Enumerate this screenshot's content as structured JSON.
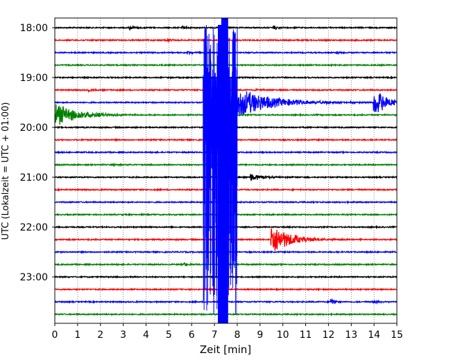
{
  "chart_data": {
    "type": "line",
    "title": "",
    "xlabel": "Zeit  [min]",
    "ylabel": "UTC (Lokalzeit = UTC + 01:00)",
    "xlim": [
      0,
      15
    ],
    "x_ticks": [
      "0",
      "1",
      "2",
      "3",
      "4",
      "5",
      "6",
      "7",
      "8",
      "9",
      "10",
      "11",
      "12",
      "13",
      "14",
      "15"
    ],
    "y_ticks": [
      "18:00",
      "19:00",
      "20:00",
      "21:00",
      "22:00",
      "23:00"
    ],
    "grid": "dotted",
    "trace_interval_minutes": 15,
    "trace_colors": [
      "#000000",
      "#ff0000",
      "#0000ff",
      "#008000"
    ],
    "traces": [
      {
        "start": "18:00",
        "color": "#000000",
        "events": [
          {
            "x": 3.3,
            "amp": 3
          },
          {
            "x": 5.6,
            "amp": 2.5
          },
          {
            "x": 9.6,
            "amp": 3
          }
        ]
      },
      {
        "start": "18:15",
        "color": "#ff0000",
        "events": [
          {
            "x": 4.9,
            "amp": 3
          }
        ]
      },
      {
        "start": "18:30",
        "color": "#0000ff",
        "events": [
          {
            "x": 5.8,
            "amp": 2.5
          },
          {
            "x": 12.4,
            "amp": 2
          }
        ]
      },
      {
        "start": "18:45",
        "color": "#008000",
        "events": []
      },
      {
        "start": "19:00",
        "color": "#000000",
        "events": []
      },
      {
        "start": "19:15",
        "color": "#ff0000",
        "events": [
          {
            "x": 1.5,
            "amp": 2
          },
          {
            "x": 8.8,
            "amp": 2
          }
        ]
      },
      {
        "start": "19:30",
        "color": "#0000ff",
        "events": [
          {
            "x": 6.6,
            "amp": 60,
            "decay": 1.4
          },
          {
            "x": 14.0,
            "amp": 20,
            "decay": 0.6
          }
        ]
      },
      {
        "start": "19:45",
        "color": "#008000",
        "events": [
          {
            "x": 0.05,
            "amp": 16,
            "decay": 1.0
          }
        ]
      },
      {
        "start": "20:00",
        "color": "#000000",
        "events": []
      },
      {
        "start": "20:15",
        "color": "#ff0000",
        "events": []
      },
      {
        "start": "20:30",
        "color": "#0000ff",
        "events": []
      },
      {
        "start": "20:45",
        "color": "#008000",
        "events": [
          {
            "x": 2.6,
            "amp": 3
          }
        ]
      },
      {
        "start": "21:00",
        "color": "#000000",
        "events": [
          {
            "x": 8.6,
            "amp": 6,
            "decay": 0.5
          }
        ]
      },
      {
        "start": "21:15",
        "color": "#ff0000",
        "events": []
      },
      {
        "start": "21:30",
        "color": "#0000ff",
        "events": []
      },
      {
        "start": "21:45",
        "color": "#008000",
        "events": []
      },
      {
        "start": "22:00",
        "color": "#000000",
        "events": []
      },
      {
        "start": "22:15",
        "color": "#ff0000",
        "events": [
          {
            "x": 9.5,
            "amp": 22,
            "decay": 0.8
          }
        ]
      },
      {
        "start": "22:30",
        "color": "#0000ff",
        "events": []
      },
      {
        "start": "22:45",
        "color": "#008000",
        "events": [
          {
            "x": 5.7,
            "amp": 2
          }
        ]
      },
      {
        "start": "23:00",
        "color": "#000000",
        "events": []
      },
      {
        "start": "23:15",
        "color": "#ff0000",
        "events": []
      },
      {
        "start": "23:30",
        "color": "#0000ff",
        "events": [
          {
            "x": 12.1,
            "amp": 5
          },
          {
            "x": 14.0,
            "amp": 3
          }
        ]
      },
      {
        "start": "23:45",
        "color": "#008000",
        "events": []
      }
    ],
    "major_event": {
      "start": "19:30",
      "color": "#0000ff",
      "x_range": [
        6.5,
        8.0
      ]
    }
  }
}
